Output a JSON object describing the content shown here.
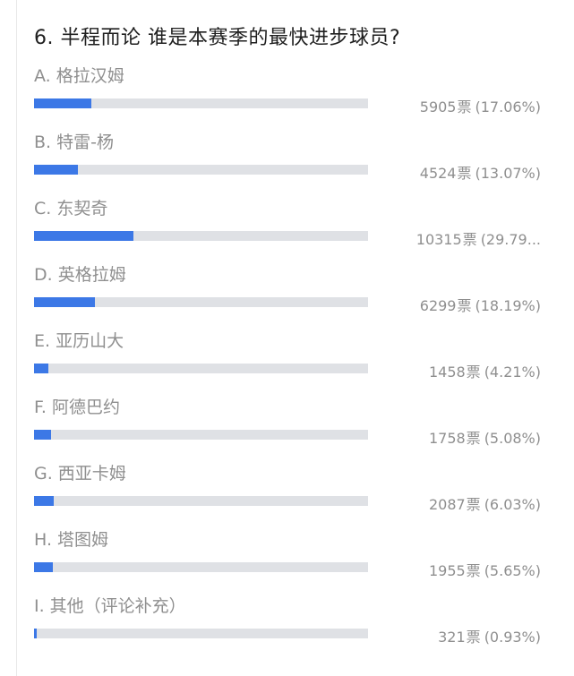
{
  "question": {
    "title": "6. 半程而论 谁是本赛季的最快进步球员?"
  },
  "vote_unit": "票",
  "colors": {
    "bar_fill": "#3c78e6",
    "bar_track": "#dfe1e5",
    "label_text": "#8f8f8f",
    "title_text": "#1f1f1f"
  },
  "options": [
    {
      "label": "A. 格拉汉姆",
      "count": "5905",
      "percent_text": "(17.06%)",
      "share": 0.1706
    },
    {
      "label": "B. 特雷-杨",
      "count": "4524",
      "percent_text": "(13.07%)",
      "share": 0.1307
    },
    {
      "label": "C. 东契奇",
      "count": "10315",
      "percent_text": "(29.79...",
      "share": 0.2979
    },
    {
      "label": "D. 英格拉姆",
      "count": "6299",
      "percent_text": "(18.19%)",
      "share": 0.1819
    },
    {
      "label": "E. 亚历山大",
      "count": "1458",
      "percent_text": "(4.21%)",
      "share": 0.0421
    },
    {
      "label": "F. 阿德巴约",
      "count": "1758",
      "percent_text": "(5.08%)",
      "share": 0.0508
    },
    {
      "label": "G. 西亚卡姆",
      "count": "2087",
      "percent_text": "(6.03%)",
      "share": 0.0603
    },
    {
      "label": "H. 塔图姆",
      "count": "1955",
      "percent_text": "(5.65%)",
      "share": 0.0565
    },
    {
      "label": "I. 其他（评论补充）",
      "count": "321",
      "percent_text": "(0.93%)",
      "share": 0.0093
    }
  ]
}
